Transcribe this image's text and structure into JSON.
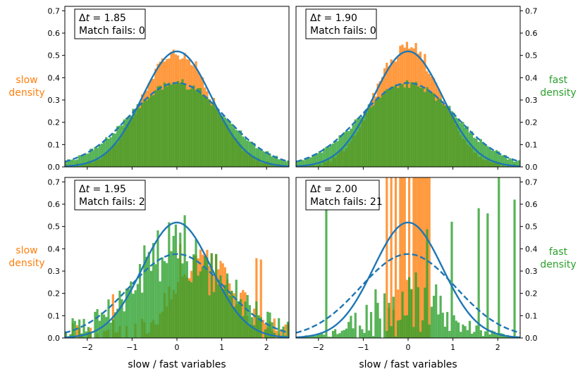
{
  "colors": {
    "slow": "#ff7f0e",
    "fast": "#2ca02c",
    "curve": "#1f77b4",
    "axis": "#000000"
  },
  "labels": {
    "xlabel": "slow / fast variables",
    "slow_density_line1": "slow",
    "slow_density_line2": "density",
    "fast_density_line1": "fast",
    "fast_density_line2": "density"
  },
  "chart_data": [
    {
      "type": "bar",
      "panel": "top-left",
      "title": "",
      "dt_label": "Δt = 1.85",
      "dt_symbol": "Δt",
      "dt_value": "1.85",
      "match_label": "Match fails: 0",
      "match_fails": 0,
      "xlim": [
        -2.5,
        2.5
      ],
      "ylim": [
        0,
        0.72
      ],
      "xticks": [
        -2,
        -1,
        0,
        1,
        2
      ],
      "yticks": [
        "0.0",
        "0.1",
        "0.2",
        "0.3",
        "0.4",
        "0.5",
        "0.6",
        "0.7"
      ],
      "series": [
        {
          "name": "slow density",
          "kind": "histogram",
          "shape": "gaussian",
          "mean": 0,
          "std": 0.77,
          "noise": 0.02
        },
        {
          "name": "fast density",
          "kind": "histogram",
          "shape": "gaussian",
          "mean": 0,
          "std": 1.06,
          "noise": 0.015
        },
        {
          "name": "slow reference",
          "kind": "curve",
          "style": "solid",
          "mean": 0,
          "std": 0.77
        },
        {
          "name": "fast reference",
          "kind": "curve",
          "style": "dashed",
          "mean": 0,
          "std": 1.06
        }
      ]
    },
    {
      "type": "bar",
      "panel": "top-right",
      "title": "",
      "dt_label": "Δt = 1.90",
      "dt_symbol": "Δt",
      "dt_value": "1.90",
      "match_label": "Match fails: 0",
      "match_fails": 0,
      "xlim": [
        -2.5,
        2.5
      ],
      "ylim": [
        0,
        0.72
      ],
      "xticks": [
        -2,
        -1,
        0,
        1,
        2
      ],
      "yticks": [
        "0.0",
        "0.1",
        "0.2",
        "0.3",
        "0.4",
        "0.5",
        "0.6",
        "0.7"
      ],
      "series": [
        {
          "name": "slow density",
          "kind": "histogram",
          "shape": "gaussian",
          "mean": 0,
          "std": 0.73,
          "noise": 0.025
        },
        {
          "name": "fast density",
          "kind": "histogram",
          "shape": "gaussian",
          "mean": 0,
          "std": 1.06,
          "noise": 0.015
        },
        {
          "name": "slow reference",
          "kind": "curve",
          "style": "solid",
          "mean": 0,
          "std": 0.77
        },
        {
          "name": "fast reference",
          "kind": "curve",
          "style": "dashed",
          "mean": 0,
          "std": 1.06
        }
      ]
    },
    {
      "type": "bar",
      "panel": "bottom-left",
      "title": "",
      "dt_label": "Δt = 1.95",
      "dt_symbol": "Δt",
      "dt_value": "1.95",
      "match_label": "Match fails: 2",
      "match_fails": 2,
      "xlim": [
        -2.5,
        2.5
      ],
      "ylim": [
        0,
        0.72
      ],
      "xticks": [
        -2,
        -1,
        0,
        1,
        2
      ],
      "yticks": [
        "0.0",
        "0.1",
        "0.2",
        "0.3",
        "0.4",
        "0.5",
        "0.6",
        "0.7"
      ],
      "series": [
        {
          "name": "slow density",
          "kind": "histogram",
          "shape": "skewed",
          "mean": 0.6,
          "std": 0.7,
          "noise": 0.12
        },
        {
          "name": "fast density",
          "kind": "histogram",
          "shape": "gaussian",
          "mean": 0.05,
          "std": 1.0,
          "noise": 0.12
        },
        {
          "name": "slow reference",
          "kind": "curve",
          "style": "solid",
          "mean": 0,
          "std": 0.77
        },
        {
          "name": "fast reference",
          "kind": "curve",
          "style": "dashed",
          "mean": 0,
          "std": 1.06
        }
      ]
    },
    {
      "type": "bar",
      "panel": "bottom-right",
      "title": "",
      "dt_label": "Δt = 2.00",
      "dt_symbol": "Δt",
      "dt_value": "2.00",
      "match_label": "Match fails: 21",
      "match_fails": 21,
      "xlim": [
        -2.5,
        2.5
      ],
      "ylim": [
        0,
        0.72
      ],
      "xticks": [
        -2,
        -1,
        0,
        1,
        2
      ],
      "yticks": [
        "0.0",
        "0.1",
        "0.2",
        "0.3",
        "0.4",
        "0.5",
        "0.6",
        "0.7"
      ],
      "series": [
        {
          "name": "slow density",
          "kind": "histogram",
          "shape": "block",
          "range": [
            -0.5,
            0.5
          ],
          "noise": 0.1
        },
        {
          "name": "fast density",
          "kind": "histogram",
          "shape": "spiky",
          "mean": 0,
          "std": 0.9,
          "noise": 0.25
        },
        {
          "name": "slow reference",
          "kind": "curve",
          "style": "solid",
          "mean": 0,
          "std": 0.77
        },
        {
          "name": "fast reference",
          "kind": "curve",
          "style": "dashed",
          "mean": 0,
          "std": 1.06
        }
      ]
    }
  ]
}
